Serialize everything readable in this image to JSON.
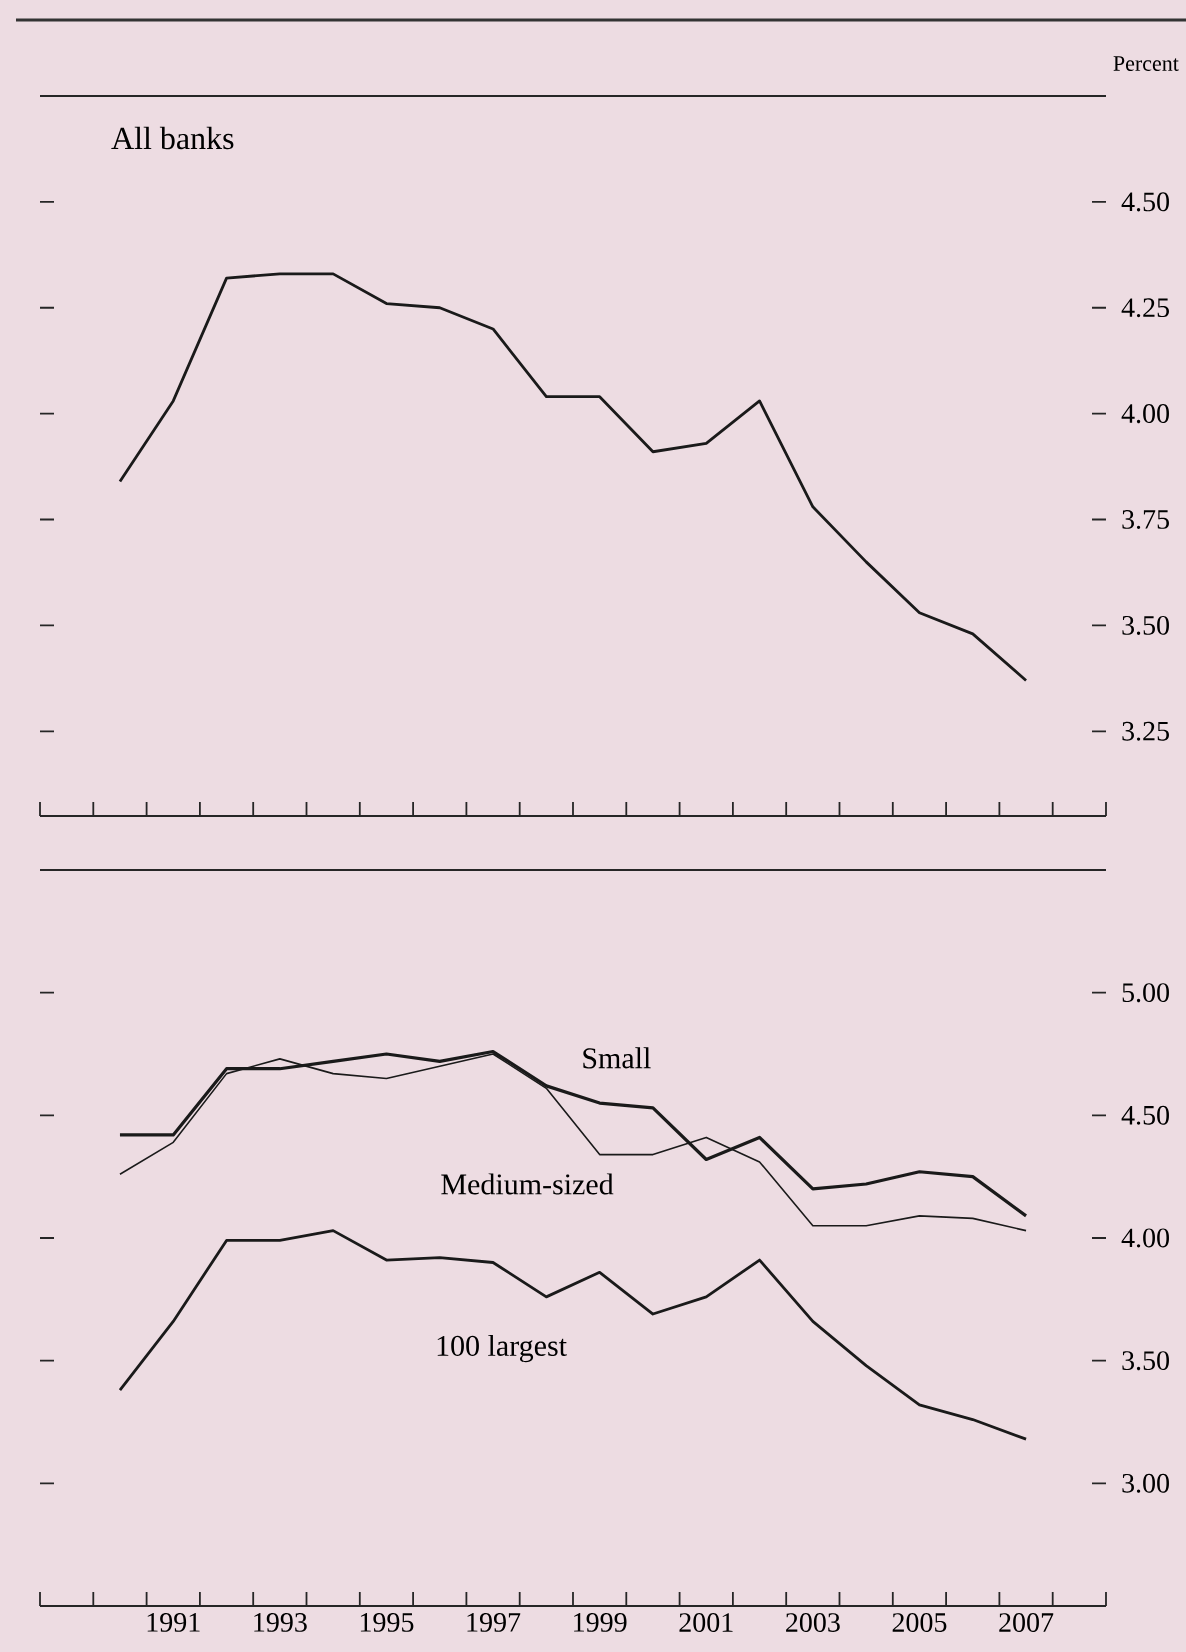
{
  "chart_data": [
    {
      "type": "line",
      "title": "All banks",
      "ylabel": "Percent",
      "x": [
        1990,
        1991,
        1992,
        1993,
        1994,
        1995,
        1996,
        1997,
        1998,
        1999,
        2000,
        2001,
        2002,
        2003,
        2004,
        2005,
        2006,
        2007
      ],
      "series": [
        {
          "color": "#1a1a1a",
          "values": [
            3.84,
            4.03,
            4.32,
            4.33,
            4.33,
            4.26,
            4.25,
            4.2,
            4.04,
            4.04,
            3.91,
            3.93,
            4.03,
            3.78,
            3.65,
            3.53,
            3.48,
            3.37
          ]
        }
      ],
      "xlim": [
        1988.5,
        2008.5
      ],
      "xticks": [
        {
          "value": 1988.5,
          "label": null
        },
        {
          "value": 1989.5,
          "label": null
        },
        {
          "value": 1990.5,
          "label": null
        },
        {
          "value": 1991.5,
          "label": null
        },
        {
          "value": 1992.5,
          "label": null
        },
        {
          "value": 1993.5,
          "label": null
        },
        {
          "value": 1994.5,
          "label": null
        },
        {
          "value": 1995.5,
          "label": null
        },
        {
          "value": 1996.5,
          "label": null
        },
        {
          "value": 1997.5,
          "label": null
        },
        {
          "value": 1998.5,
          "label": null
        },
        {
          "value": 1999.5,
          "label": null
        },
        {
          "value": 2000.5,
          "label": null
        },
        {
          "value": 2001.5,
          "label": null
        },
        {
          "value": 2002.5,
          "label": null
        },
        {
          "value": 2003.5,
          "label": null
        },
        {
          "value": 2004.5,
          "label": null
        },
        {
          "value": 2005.5,
          "label": null
        },
        {
          "value": 2006.5,
          "label": null
        },
        {
          "value": 2007.5,
          "label": null
        },
        {
          "value": 2008.5,
          "label": null
        }
      ],
      "ylim": [
        3.05,
        4.75
      ],
      "yticks": [
        {
          "value": 3.25,
          "label": "3.25"
        },
        {
          "value": 3.5,
          "label": "3.50"
        },
        {
          "value": 3.75,
          "label": "3.75"
        },
        {
          "value": 4.0,
          "label": "4.00"
        },
        {
          "value": 4.25,
          "label": "4.25"
        },
        {
          "value": 4.5,
          "label": "4.50"
        }
      ],
      "tick_labels": "y",
      "line_style": "solid"
    },
    {
      "type": "line",
      "x": [
        1990,
        1991,
        1992,
        1993,
        1994,
        1995,
        1996,
        1997,
        1998,
        1999,
        2000,
        2001,
        2002,
        2003,
        2004,
        2005,
        2006,
        2007
      ],
      "series": [
        {
          "name": "Small",
          "color": "#1a1a1a",
          "values": [
            4.42,
            4.42,
            4.69,
            4.69,
            4.72,
            4.75,
            4.72,
            4.76,
            4.62,
            4.55,
            4.53,
            4.32,
            4.41,
            4.2,
            4.22,
            4.27,
            4.25,
            4.09
          ]
        },
        {
          "name": "Medium-sized",
          "color": "#1a1a1a",
          "values": [
            4.26,
            4.39,
            4.67,
            4.73,
            4.67,
            4.65,
            4.7,
            4.75,
            4.61,
            4.34,
            4.34,
            4.41,
            4.31,
            4.05,
            4.05,
            4.09,
            4.08,
            4.03
          ]
        },
        {
          "name": "100 largest",
          "color": "#1a1a1a",
          "values": [
            3.38,
            3.66,
            3.99,
            3.99,
            4.03,
            3.91,
            3.92,
            3.9,
            3.76,
            3.86,
            3.69,
            3.76,
            3.91,
            3.66,
            3.48,
            3.32,
            3.26,
            3.18
          ]
        }
      ],
      "xlim": [
        1988.5,
        2008.5
      ],
      "xticks": [
        {
          "value": 1988.5,
          "label": null
        },
        {
          "value": 1989.5,
          "label": null
        },
        {
          "value": 1990.5,
          "label": null
        },
        {
          "value": 1991.5,
          "label": null
        },
        {
          "value": 1992.5,
          "label": null
        },
        {
          "value": 1993.5,
          "label": null
        },
        {
          "value": 1994.5,
          "label": null
        },
        {
          "value": 1995.5,
          "label": null
        },
        {
          "value": 1996.5,
          "label": null
        },
        {
          "value": 1997.5,
          "label": null
        },
        {
          "value": 1998.5,
          "label": null
        },
        {
          "value": 1999.5,
          "label": null
        },
        {
          "value": 2000.5,
          "label": null
        },
        {
          "value": 2001.5,
          "label": null
        },
        {
          "value": 2002.5,
          "label": null
        },
        {
          "value": 2003.5,
          "label": null
        },
        {
          "value": 2004.5,
          "label": null
        },
        {
          "value": 2005.5,
          "label": null
        },
        {
          "value": 2006.5,
          "label": null
        },
        {
          "value": 2007.5,
          "label": null
        },
        {
          "value": 2008.5,
          "label": null
        },
        {
          "value": 1991,
          "label": "1991"
        },
        {
          "value": 1993,
          "label": "1993"
        },
        {
          "value": 1995,
          "label": "1995"
        },
        {
          "value": 1997,
          "label": "1997"
        },
        {
          "value": 1999,
          "label": "1999"
        },
        {
          "value": 2001,
          "label": "2001"
        },
        {
          "value": 2003,
          "label": "2003"
        },
        {
          "value": 2005,
          "label": "2005"
        },
        {
          "value": 2007,
          "label": "2007"
        }
      ],
      "ylim": [
        2.5,
        5.5
      ],
      "yticks": [
        {
          "value": 3.0,
          "label": "3.00"
        },
        {
          "value": 3.5,
          "label": "3.50"
        },
        {
          "value": 4.0,
          "label": "4.00"
        },
        {
          "value": 4.5,
          "label": "4.50"
        },
        {
          "value": 5.0,
          "label": "5.00"
        }
      ],
      "line_style": "solid"
    }
  ]
}
